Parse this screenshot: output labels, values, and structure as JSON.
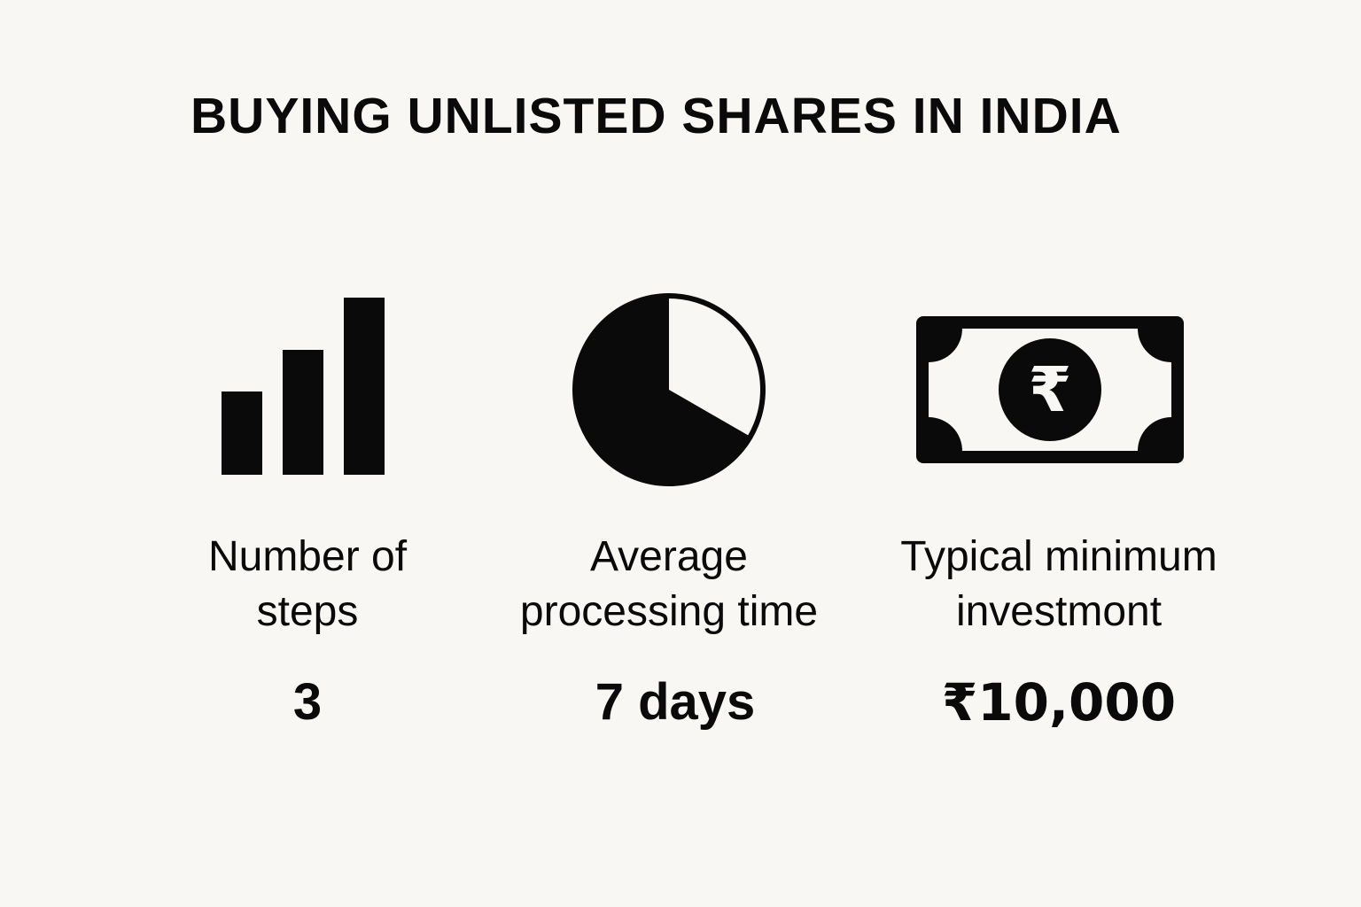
{
  "title": "BUYING UNLISTED SHARES IN INDIA",
  "stats": [
    {
      "icon": "bar-chart-icon",
      "label_line1": "Number of",
      "label_line2": "steps",
      "value": "3"
    },
    {
      "icon": "pie-clock-icon",
      "label_line1": "Average",
      "label_line2": "processing time",
      "value": "7 days"
    },
    {
      "icon": "rupee-banknote-icon",
      "label_line1": "Typical minimum",
      "label_line2": "investmont",
      "value": "₹10,000"
    }
  ],
  "colors": {
    "background": "#f8f7f3",
    "ink": "#0a0a0a"
  }
}
